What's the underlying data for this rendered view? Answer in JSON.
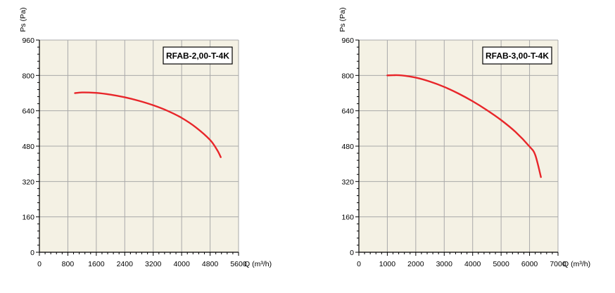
{
  "colors": {
    "plot_background": "#f4f1e4",
    "grid": "#a9a9a9",
    "axis": "#000000",
    "curve": "#e8262a",
    "text": "#000000"
  },
  "chart_data": [
    {
      "type": "line",
      "title": "RFAB-2,00-T-4K",
      "xlabel": "Q (m³/h)",
      "ylabel": "Ps (Pa)",
      "xlim": [
        0,
        5600
      ],
      "ylim": [
        0,
        960
      ],
      "x_ticks": [
        0,
        800,
        1600,
        2400,
        3200,
        4000,
        4800,
        5600
      ],
      "x_tick_labels": [
        "0",
        "800",
        "1600",
        "2400",
        "3200",
        "4000",
        "4800",
        "5600"
      ],
      "y_ticks": [
        0,
        160,
        320,
        480,
        640,
        800,
        960
      ],
      "y_tick_labels": [
        "0",
        "160",
        "320",
        "480",
        "640",
        "800",
        "960"
      ],
      "grid": true,
      "series": [
        {
          "x": [
            1000,
            1200,
            1600,
            2000,
            2400,
            2800,
            3200,
            3600,
            4000,
            4400,
            4800,
            5000,
            5100
          ],
          "y": [
            720,
            723,
            721,
            713,
            701,
            685,
            665,
            640,
            608,
            565,
            508,
            462,
            430
          ]
        }
      ]
    },
    {
      "type": "line",
      "title": "RFAB-3,00-T-4K",
      "xlabel": "Q (m³/h)",
      "ylabel": "Ps (Pa)",
      "xlim": [
        0,
        7000
      ],
      "ylim": [
        0,
        960
      ],
      "x_ticks": [
        0,
        1000,
        2000,
        3000,
        4000,
        5000,
        6000,
        7000
      ],
      "x_tick_labels": [
        "0",
        "1000",
        "2000",
        "3000",
        "4000",
        "5000",
        "6000",
        "7000"
      ],
      "y_ticks": [
        0,
        160,
        320,
        480,
        640,
        800,
        960
      ],
      "y_tick_labels": [
        "0",
        "160",
        "320",
        "480",
        "640",
        "800",
        "960"
      ],
      "grid": true,
      "series": [
        {
          "x": [
            1000,
            1200,
            1500,
            2000,
            2500,
            3000,
            3500,
            4000,
            4500,
            5000,
            5500,
            6000,
            6200,
            6400
          ],
          "y": [
            800,
            801,
            800,
            790,
            772,
            748,
            718,
            683,
            643,
            598,
            545,
            478,
            440,
            340
          ]
        }
      ]
    }
  ]
}
